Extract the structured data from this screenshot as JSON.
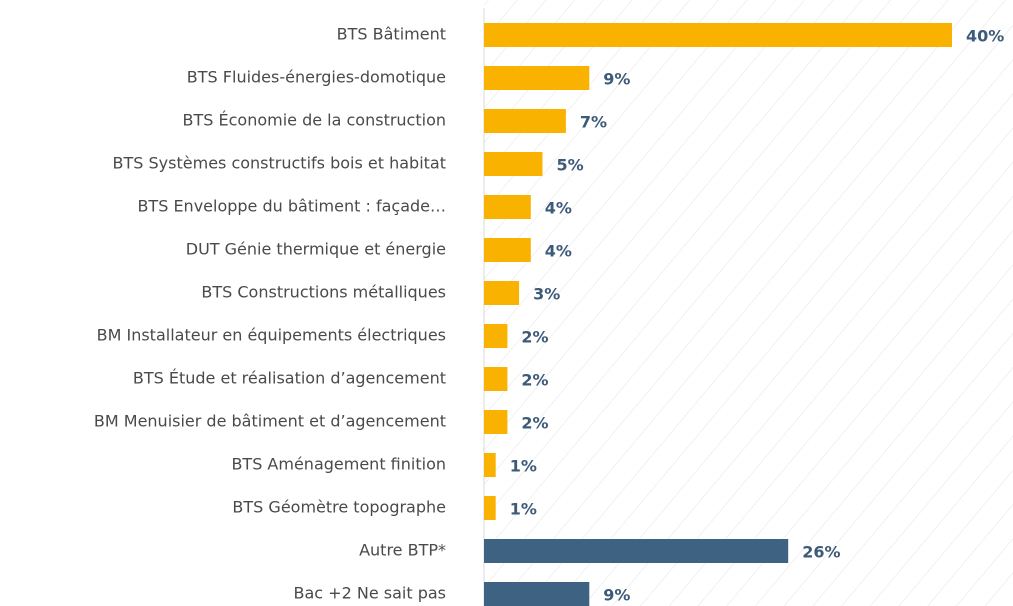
{
  "chart_data": {
    "type": "hbar",
    "categories": [
      "BTS Bâtiment",
      "BTS Fluides-énergies-domotique",
      "BTS Économie de la construction",
      "BTS Systèmes constructifs bois et habitat",
      "BTS Enveloppe du bâtiment : façade…",
      "DUT Génie thermique et énergie",
      "BTS Constructions métalliques",
      "BM Installateur en équipements électriques",
      "BTS Étude et réalisation d’agencement",
      "BM Menuisier de bâtiment et d’agencement",
      "BTS Aménagement finition",
      "BTS Géomètre topographe",
      "Autre BTP*",
      "Bac +2 Ne sait pas"
    ],
    "values": [
      40,
      9,
      7,
      5,
      4,
      4,
      3,
      2,
      2,
      2,
      1,
      1,
      26,
      9
    ],
    "value_labels": [
      "40%",
      "9%",
      "7%",
      "5%",
      "4%",
      "4%",
      "3%",
      "2%",
      "2%",
      "2%",
      "1%",
      "1%",
      "26%",
      "9%"
    ],
    "colors": [
      "#f9b200",
      "#f9b200",
      "#f9b200",
      "#f9b200",
      "#f9b200",
      "#f9b200",
      "#f9b200",
      "#f9b200",
      "#f9b200",
      "#f9b200",
      "#f9b200",
      "#f9b200",
      "#3e6281",
      "#3e6281"
    ],
    "xlim": [
      0,
      45
    ]
  }
}
